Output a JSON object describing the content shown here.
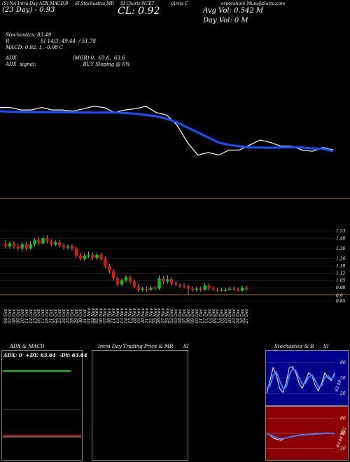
{
  "header": {
    "title_left": "(S) NA Intra-Day ADX,MACD,B",
    "date_left": "(23 Day) - 0.93",
    "title_mid": "SI,Stochastics,MR",
    "title_mid2": "SI Charts NCET",
    "cl_label": "CL: 0.92",
    "title_right": "(Arcis C",
    "title_right2": "orporation) MunafaSutra.com",
    "avg_vol": "Avg Vol: 0.542  M",
    "day_vol": "Day Vol: 0   M"
  },
  "stats": {
    "stoch_title": "Stochastics: 83.49",
    "stoch_values": "R                    SI 14/3: 49.44  / 51.78",
    "macd": "MACD: 0.92,  1,  -0.08  C",
    "adx": "ADX:                                   (MGR) 0,  63.6,  63.6",
    "adx_signal": "ADX  signal:                              BUY Sloping @ 0%"
  },
  "chart_data": [
    {
      "type": "line",
      "panel": "price overview",
      "series": [
        {
          "values": [
            0.97,
            0.97,
            0.96,
            0.96,
            0.97,
            0.96,
            0.96,
            0.955,
            0.965,
            0.975,
            0.97,
            0.95,
            0.96,
            0.965,
            0.975,
            0.95,
            0.94,
            0.9,
            0.83,
            0.78,
            0.79,
            0.78,
            0.8,
            0.8,
            0.82,
            0.84,
            0.83,
            0.815,
            0.815,
            0.8,
            0.795,
            0.81,
            0.8
          ]
        },
        {
          "values": [
            0.955,
            0.953,
            0.952,
            0.951,
            0.951,
            0.951,
            0.951,
            0.95,
            0.95,
            0.95,
            0.95,
            0.95,
            0.948,
            0.945,
            0.94,
            0.935,
            0.925,
            0.91,
            0.89,
            0.87,
            0.85,
            0.83,
            0.82,
            0.815,
            0.81,
            0.81,
            0.809,
            0.81,
            0.811,
            0.81,
            0.806,
            0.805,
            0.795
          ]
        }
      ]
    },
    {
      "type": "candlestick",
      "panel": "daily price",
      "y_ticks": [
        "1.53",
        "1.46",
        "1.36",
        "1.26",
        "1.19",
        "1.12",
        "1.05",
        "0.98",
        "0.9",
        "0.85"
      ],
      "x": [
        "04 Oct",
        "07 Oct",
        "08 Oct",
        "09 Oct",
        "10 Oct",
        "11 Oct",
        "14 Oct",
        "15 Oct",
        "16 Oct",
        "17 Oct",
        "18 Oct",
        "21 Oct",
        "22 Oct",
        "23 Oct",
        "24 Oct",
        "25 Oct",
        "28 Oct",
        "29 Oct",
        "30 Oct",
        "31 Oct",
        "01 Nov",
        "04 Nov",
        "05 Nov",
        "06 Nov",
        "07 Nov",
        "08 Nov",
        "11 Nov",
        "12 Nov",
        "13 Nov",
        "14 Nov",
        "15 Nov",
        "18 Nov",
        "19 Nov",
        "20 Nov",
        "21 Nov",
        "22 Nov",
        "25 Nov",
        "26 Nov",
        "27 Nov",
        "29 Nov",
        "02 Dec",
        "03 Dec",
        "04 Dec",
        "05 Dec",
        "06 Dec",
        "09 Dec",
        "10 Dec",
        "11 Dec",
        "12 Dec",
        "13 Dec",
        "16 Dec",
        "17 Dec",
        "18 Dec",
        "19 Dec",
        "20 Dec",
        "23 Dec",
        "24 Dec",
        "26 Dec",
        "27 Dec"
      ],
      "candles": [
        {
          "o": 1.4,
          "c": 1.38,
          "h": 1.44,
          "l": 1.36
        },
        {
          "o": 1.38,
          "c": 1.41,
          "h": 1.43,
          "l": 1.36
        },
        {
          "o": 1.41,
          "c": 1.38,
          "h": 1.43,
          "l": 1.36
        },
        {
          "o": 1.38,
          "c": 1.36,
          "h": 1.41,
          "l": 1.34
        },
        {
          "o": 1.36,
          "c": 1.4,
          "h": 1.42,
          "l": 1.33
        },
        {
          "o": 1.4,
          "c": 1.36,
          "h": 1.42,
          "l": 1.34
        },
        {
          "o": 1.36,
          "c": 1.4,
          "h": 1.43,
          "l": 1.35
        },
        {
          "o": 1.4,
          "c": 1.44,
          "h": 1.46,
          "l": 1.38
        },
        {
          "o": 1.44,
          "c": 1.41,
          "h": 1.47,
          "l": 1.39
        },
        {
          "o": 1.41,
          "c": 1.46,
          "h": 1.48,
          "l": 1.4
        },
        {
          "o": 1.46,
          "c": 1.43,
          "h": 1.49,
          "l": 1.41
        },
        {
          "o": 1.43,
          "c": 1.4,
          "h": 1.45,
          "l": 1.38
        },
        {
          "o": 1.4,
          "c": 1.42,
          "h": 1.44,
          "l": 1.38
        },
        {
          "o": 1.42,
          "c": 1.39,
          "h": 1.44,
          "l": 1.37
        },
        {
          "o": 1.39,
          "c": 1.37,
          "h": 1.41,
          "l": 1.35
        },
        {
          "o": 1.37,
          "c": 1.38,
          "h": 1.4,
          "l": 1.35
        },
        {
          "o": 1.38,
          "c": 1.36,
          "h": 1.4,
          "l": 1.34
        },
        {
          "o": 1.36,
          "c": 1.29,
          "h": 1.38,
          "l": 1.27
        },
        {
          "o": 1.29,
          "c": 1.26,
          "h": 1.32,
          "l": 1.24
        },
        {
          "o": 1.26,
          "c": 1.29,
          "h": 1.31,
          "l": 1.24
        },
        {
          "o": 1.29,
          "c": 1.3,
          "h": 1.33,
          "l": 1.27
        },
        {
          "o": 1.3,
          "c": 1.27,
          "h": 1.32,
          "l": 1.25
        },
        {
          "o": 1.27,
          "c": 1.3,
          "h": 1.32,
          "l": 1.25
        },
        {
          "o": 1.3,
          "c": 1.26,
          "h": 1.32,
          "l": 1.24
        },
        {
          "o": 1.26,
          "c": 1.19,
          "h": 1.28,
          "l": 1.17
        },
        {
          "o": 1.19,
          "c": 1.14,
          "h": 1.21,
          "l": 1.12
        },
        {
          "o": 1.14,
          "c": 1.07,
          "h": 1.16,
          "l": 1.05
        },
        {
          "o": 1.07,
          "c": 1.01,
          "h": 1.09,
          "l": 0.99
        },
        {
          "o": 1.01,
          "c": 1.05,
          "h": 1.07,
          "l": 0.99
        },
        {
          "o": 1.05,
          "c": 1.08,
          "h": 1.1,
          "l": 1.03
        },
        {
          "o": 1.08,
          "c": 1.04,
          "h": 1.1,
          "l": 1.02
        },
        {
          "o": 1.04,
          "c": 0.99,
          "h": 1.06,
          "l": 0.97
        },
        {
          "o": 0.99,
          "c": 0.96,
          "h": 1.01,
          "l": 0.94
        },
        {
          "o": 0.96,
          "c": 0.97,
          "h": 0.99,
          "l": 0.94
        },
        {
          "o": 0.97,
          "c": 0.96,
          "h": 0.99,
          "l": 0.94
        },
        {
          "o": 0.96,
          "c": 0.98,
          "h": 1.0,
          "l": 0.95
        },
        {
          "o": 0.98,
          "c": 0.97,
          "h": 1.0,
          "l": 0.95
        },
        {
          "o": 0.97,
          "c": 1.07,
          "h": 1.1,
          "l": 0.96
        },
        {
          "o": 1.07,
          "c": 1.04,
          "h": 1.09,
          "l": 1.02
        },
        {
          "o": 1.04,
          "c": 1.06,
          "h": 1.1,
          "l": 1.02
        },
        {
          "o": 1.06,
          "c": 1.02,
          "h": 1.08,
          "l": 1.0
        },
        {
          "o": 1.02,
          "c": 1.01,
          "h": 1.04,
          "l": 0.99
        },
        {
          "o": 1.01,
          "c": 1.0,
          "h": 1.02,
          "l": 0.98
        },
        {
          "o": 1.0,
          "c": 0.99,
          "h": 1.02,
          "l": 0.97
        },
        {
          "o": 0.99,
          "c": 0.97,
          "h": 1.01,
          "l": 0.91
        },
        {
          "o": 0.97,
          "c": 0.96,
          "h": 0.99,
          "l": 0.94
        },
        {
          "o": 0.96,
          "c": 0.97,
          "h": 0.99,
          "l": 0.94
        },
        {
          "o": 0.97,
          "c": 0.96,
          "h": 0.99,
          "l": 0.94
        },
        {
          "o": 0.96,
          "c": 1.0,
          "h": 1.02,
          "l": 0.95
        },
        {
          "o": 1.0,
          "c": 0.97,
          "h": 1.02,
          "l": 0.95
        },
        {
          "o": 0.97,
          "c": 0.96,
          "h": 0.99,
          "l": 0.95
        },
        {
          "o": 0.96,
          "c": 0.95,
          "h": 0.98,
          "l": 0.94
        },
        {
          "o": 0.95,
          "c": 0.96,
          "h": 0.98,
          "l": 0.94
        },
        {
          "o": 0.96,
          "c": 0.96,
          "h": 0.98,
          "l": 0.94
        },
        {
          "o": 0.96,
          "c": 0.97,
          "h": 0.99,
          "l": 0.95
        },
        {
          "o": 0.97,
          "c": 0.96,
          "h": 0.99,
          "l": 0.95
        },
        {
          "o": 0.96,
          "c": 0.95,
          "h": 0.98,
          "l": 0.94
        },
        {
          "o": 0.95,
          "c": 0.98,
          "h": 1.0,
          "l": 0.94
        },
        {
          "o": 0.98,
          "c": 0.96,
          "h": 1.0,
          "l": 0.95
        }
      ]
    },
    {
      "type": "line",
      "panel": "stochastics",
      "y_ticks": [
        "80",
        "50",
        "20"
      ],
      "series": [
        {
          "values": [
            20,
            45,
            70,
            55,
            30,
            22,
            40,
            70,
            72,
            60,
            40,
            30,
            45,
            60,
            55,
            35,
            25,
            40,
            60,
            50,
            45,
            60
          ]
        },
        {
          "values": [
            30,
            35,
            55,
            62,
            45,
            30,
            32,
            55,
            68,
            64,
            50,
            38,
            40,
            52,
            56,
            45,
            32,
            35,
            52,
            54,
            48,
            55
          ]
        }
      ]
    },
    {
      "type": "line",
      "panel": "rsi",
      "y_ticks": [
        "80",
        "50",
        "20"
      ],
      "series": [
        {
          "values": [
            50,
            46,
            40,
            38,
            36,
            40,
            42,
            44,
            45,
            46,
            48,
            47,
            48,
            49,
            50,
            49,
            50,
            51,
            50,
            49
          ]
        },
        {
          "values": [
            49,
            47,
            44,
            41,
            39,
            40,
            42,
            43,
            45,
            46,
            47,
            47,
            48,
            48,
            49,
            49,
            50,
            50,
            50,
            49
          ]
        }
      ]
    }
  ],
  "panels": {
    "adx_title": "ADX  & MACD",
    "adx_values": "ADX: 0  +DY: 63.64  -DY: 63.64",
    "intra_title": "Intra  Day Trading Price  & MR",
    "intra_title2": "SI",
    "stoch_title": "Stochastics & R",
    "stoch_title2": "SI",
    "rsi_side_label": "49.44 RSI",
    "stoch_side_label": "83.49"
  },
  "colors": {
    "up": "#00cc00",
    "down": "#dd1111",
    "avg": "#1a4fff",
    "divider": "#7a3a00",
    "rsi_bg": "#8b0000",
    "stoch_bg": "#00008b"
  }
}
